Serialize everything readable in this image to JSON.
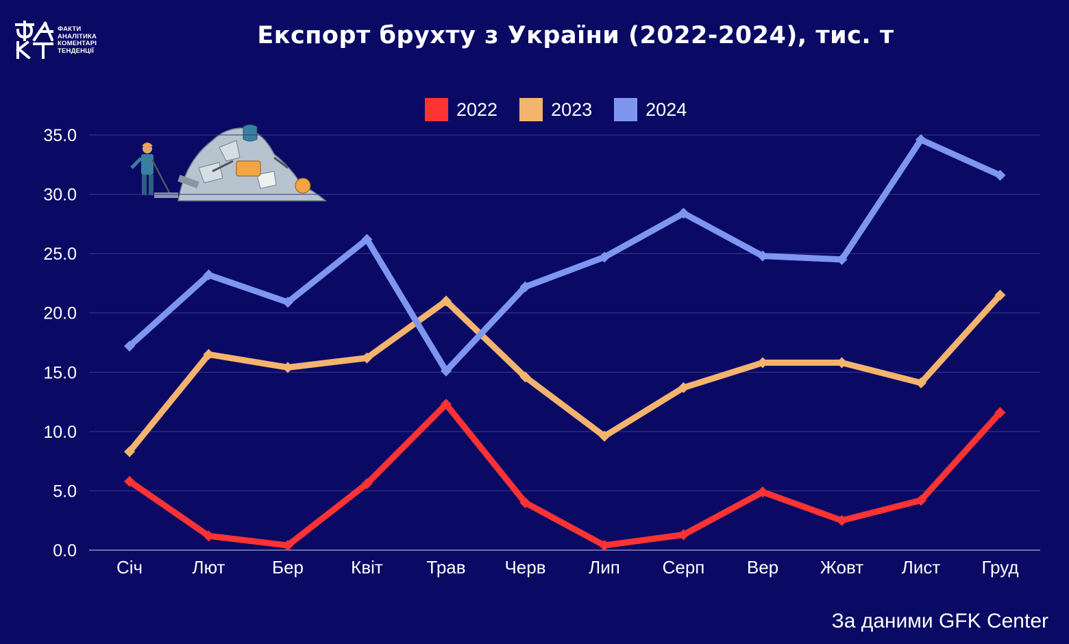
{
  "logo": {
    "mark": "ФАКТ",
    "lines": [
      "ФАКТИ",
      "АНАЛІТИКА",
      "КОМЕНТАРІ",
      "ТЕНДЕНЦІЇ"
    ]
  },
  "title": "Експорт брухту з України (2022-2024), тис. т",
  "source": "За даними GFK Center",
  "colors": {
    "background": "#0a0a64",
    "grid": "#3a3a8a"
  },
  "chart_data": {
    "type": "line",
    "categories": [
      "Січ",
      "Лют",
      "Бер",
      "Квіт",
      "Трав",
      "Черв",
      "Лип",
      "Серп",
      "Вер",
      "Жовт",
      "Лист",
      "Груд"
    ],
    "series": [
      {
        "name": "2022",
        "color": "#ff3333",
        "values": [
          5.8,
          1.2,
          0.4,
          5.6,
          12.3,
          4.0,
          0.4,
          1.3,
          4.9,
          2.5,
          4.2,
          11.6
        ]
      },
      {
        "name": "2023",
        "color": "#f5b46e",
        "values": [
          8.3,
          16.5,
          15.4,
          16.2,
          21.0,
          14.6,
          9.6,
          13.7,
          15.8,
          15.8,
          14.1,
          21.5
        ]
      },
      {
        "name": "2024",
        "color": "#7f96f0",
        "values": [
          17.2,
          23.2,
          20.9,
          26.2,
          15.1,
          22.2,
          24.7,
          28.4,
          24.8,
          24.5,
          34.6,
          31.6
        ]
      }
    ],
    "yticks": [
      "0.0",
      "5.0",
      "10.0",
      "15.0",
      "20.0",
      "25.0",
      "30.0",
      "35.0"
    ],
    "ylim": [
      0,
      35
    ],
    "grid": true,
    "legend_position": "top-center"
  }
}
